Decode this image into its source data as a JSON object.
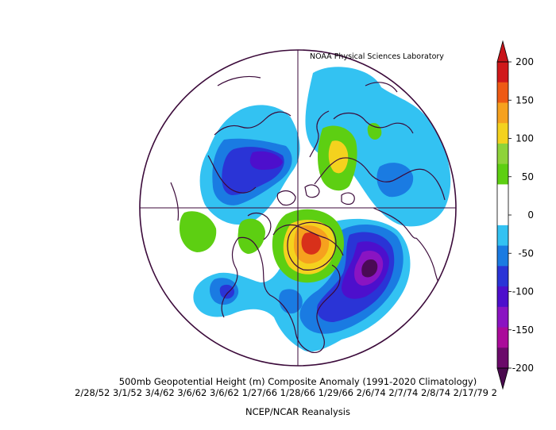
{
  "credit": "NOAA Physical Sciences Laboratory",
  "title": "500mb Geopotential Height (m) Composite Anomaly (1991-2020 Climatology)",
  "dates": "2/28/52 3/1/52 3/4/62 3/6/62 3/6/62 1/27/66 1/28/66 1/29/66 2/6/74 2/7/74 2/8/74 2/17/79 2",
  "source": "NCEP/NCAR Reanalysis",
  "colorbar": {
    "ticks": [
      "200",
      "150",
      "100",
      "50",
      "0",
      "-50",
      "-100",
      "-150",
      "-200"
    ],
    "colors": [
      "#d0181a",
      "#ee5a14",
      "#f6a11e",
      "#f4d21e",
      "#8ed33a",
      "#5dcf12",
      "#ffffff",
      "#ffffff",
      "#33c2f2",
      "#1a7be2",
      "#2a34d6",
      "#4d0fcc",
      "#8a14c2",
      "#aa0b9a",
      "#6b0a6a"
    ]
  },
  "map_colors": {
    "outline": "#3b0a3a",
    "pos_light": "#5dcf12",
    "pos_yellow": "#f4d21e",
    "pos_orange": "#f6a11e",
    "pos_red": "#d8301a",
    "neg_light": "#33c2f2",
    "neg_mid": "#1a7be2",
    "neg_blue": "#2a34d6",
    "neg_violet": "#4d0fcc",
    "neg_purple": "#8a14c2",
    "neg_deep": "#4a0a55"
  }
}
